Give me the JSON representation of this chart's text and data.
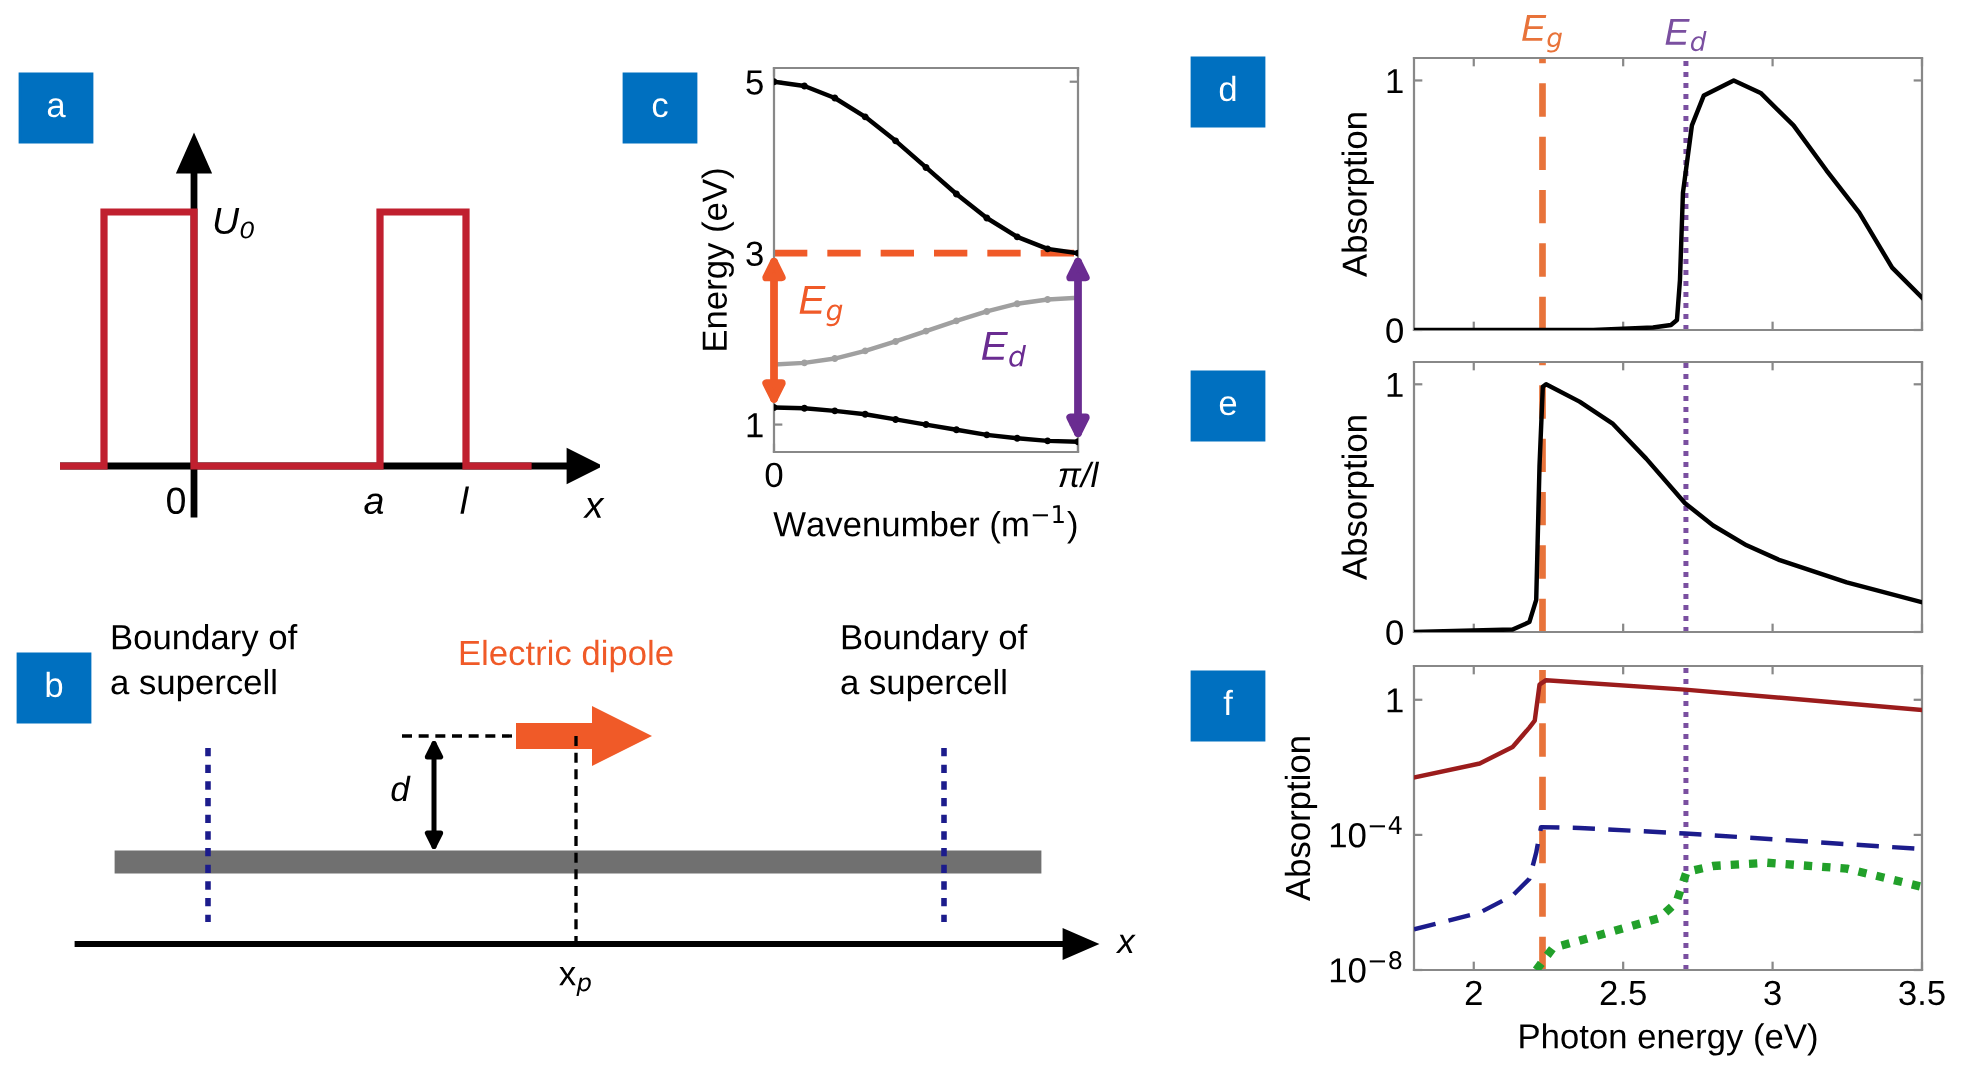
{
  "chart_data": [
    {
      "type": "other",
      "annotations": [
        "a",
        "U₀",
        "0",
        "a",
        "l",
        "x"
      ]
    },
    {
      "type": "other",
      "annotations": [
        "b",
        "Boundary of\na supercell",
        "Electric dipole",
        "Boundary of\na supercell",
        "d",
        "x$_{p}$",
        "x"
      ]
    },
    {
      "type": "line",
      "xlabel": "Wavenumber (m$^{−1}$)",
      "ylabel": "Energy (eV)",
      "annotations": [
        "c",
        "E$_{g}$",
        "E$_{d}$"
      ],
      "categories": [
        "0",
        null,
        null,
        null,
        null,
        null,
        null,
        null,
        null,
        null,
        "π/l"
      ],
      "ylim": [
        0.68,
        5.16
      ],
      "yticks": [
        1,
        3,
        5
      ],
      "marker": "circle",
      "series": [
        {
          "color": "#000000",
          "values": [
            5,
            4.95,
            4.81,
            4.59,
            4.31,
            4,
            3.69,
            3.41,
            3.19,
            3.05,
            3
          ]
        },
        {
          "color": "#a0a0a0",
          "values": [
            1.7,
            1.72,
            1.77,
            1.86,
            1.97,
            2.09,
            2.21,
            2.32,
            2.41,
            2.46,
            2.48
          ]
        },
        {
          "color": "#000000",
          "values": [
            1.2,
            1.19,
            1.16,
            1.12,
            1.06,
            1.0,
            0.94,
            0.88,
            0.84,
            0.81,
            0.8
          ]
        }
      ],
      "ref_lines": [
        {
          "axis": "y",
          "value": 3,
          "color": "#f05a28",
          "line_style": "dashed"
        }
      ]
    },
    {
      "type": "line",
      "ylabel": "Absorption",
      "annotations": [
        "d"
      ],
      "tick_labels": "y",
      "xlim": [
        1.8,
        3.5
      ],
      "xticks": [
        2,
        2.5,
        3,
        3.5
      ],
      "ylim": [
        0,
        1.09
      ],
      "yticks": [
        0,
        1
      ],
      "series": [
        {
          "color": "#000000",
          "x": [
            1.8,
            2.4,
            2.6,
            2.66,
            2.68,
            2.69,
            2.7,
            2.73,
            2.77,
            2.87,
            2.96,
            3.07,
            3.18,
            3.29,
            3.4,
            3.5
          ],
          "values": [
            0,
            0,
            0.01,
            0.02,
            0.04,
            0.2,
            0.55,
            0.82,
            0.94,
            1.0,
            0.95,
            0.82,
            0.64,
            0.47,
            0.25,
            0.13
          ]
        }
      ],
      "ref_lines": [
        {
          "axis": "x",
          "value": 2.23,
          "label": "E$_{g}$",
          "color": "#e8733a",
          "line_style": "dashed"
        },
        {
          "axis": "x",
          "value": 2.71,
          "label": "E$_{d}$",
          "color": "#7a4fa0",
          "line_style": "dotted"
        }
      ]
    },
    {
      "type": "line",
      "ylabel": "Absorption",
      "annotations": [
        "e"
      ],
      "tick_labels": "y",
      "xlim": [
        1.8,
        3.5
      ],
      "xticks": [
        2,
        2.5,
        3,
        3.5
      ],
      "ylim": [
        0,
        1.09
      ],
      "yticks": [
        0,
        1
      ],
      "series": [
        {
          "color": "#000000",
          "x": [
            1.8,
            2.13,
            2.186,
            2.209,
            2.22,
            2.231,
            2.242,
            2.354,
            2.466,
            2.577,
            2.707,
            2.801,
            2.913,
            3.024,
            3.248,
            3.5
          ],
          "values": [
            0,
            0.01,
            0.04,
            0.13,
            0.67,
            0.99,
            1.0,
            0.93,
            0.84,
            0.7,
            0.52,
            0.43,
            0.35,
            0.29,
            0.2,
            0.12
          ]
        }
      ],
      "ref_lines": [
        {
          "axis": "x",
          "value": 2.23,
          "color": "#e8733a",
          "line_style": "dashed"
        },
        {
          "axis": "x",
          "value": 2.71,
          "color": "#7a4fa0",
          "line_style": "dotted"
        }
      ]
    },
    {
      "type": "line",
      "log": "y",
      "xlabel": "Photon energy (eV)",
      "ylabel": "Absorption",
      "annotations": [
        "f"
      ],
      "xlim": [
        1.8,
        3.5
      ],
      "xticks": [
        2,
        2.5,
        3,
        3.5
      ],
      "ylim": [
        1e-08,
        10
      ],
      "yticks": [
        1,
        {
          "value": 0.0001,
          "label": "10$^{−4}$"
        },
        {
          "value": 1e-08,
          "label": "10$^{−8}$"
        }
      ],
      "series": [
        {
          "color": "#9b1c1c",
          "line_style": "solid",
          "x": [
            1.8,
            2.02,
            2.13,
            2.186,
            2.204,
            2.22,
            2.242,
            2.707,
            3.5
          ],
          "values": [
            0.005,
            0.013,
            0.04,
            0.15,
            0.24,
            2.8,
            3.8,
            2.0,
            0.5
          ]
        },
        {
          "color": "#1c1c8c",
          "line_style": "dashed",
          "x": [
            1.8,
            2.02,
            2.13,
            2.186,
            2.209,
            2.225,
            2.354,
            2.707,
            3.5
          ],
          "values": [
            1.6e-07,
            5e-07,
            1.6e-06,
            5e-06,
            3e-05,
            0.00017,
            0.00016,
            0.00011,
            3.8e-05
          ]
        },
        {
          "color": "#22a02a",
          "line_style": "dotted",
          "x": [
            2.209,
            2.265,
            2.466,
            2.62,
            2.678,
            2.712,
            2.8,
            2.98,
            3.248,
            3.5
          ],
          "values": [
            1e-08,
            4.5e-08,
            1.4e-07,
            3.4e-07,
            1e-06,
            8e-06,
            1.2e-05,
            1.5e-05,
            1e-05,
            2.9e-06
          ]
        }
      ],
      "ref_lines": [
        {
          "axis": "x",
          "value": 2.23,
          "color": "#e8733a",
          "line_style": "dashed"
        },
        {
          "axis": "x",
          "value": 2.71,
          "color": "#7a4fa0",
          "line_style": "dotted"
        }
      ]
    }
  ]
}
